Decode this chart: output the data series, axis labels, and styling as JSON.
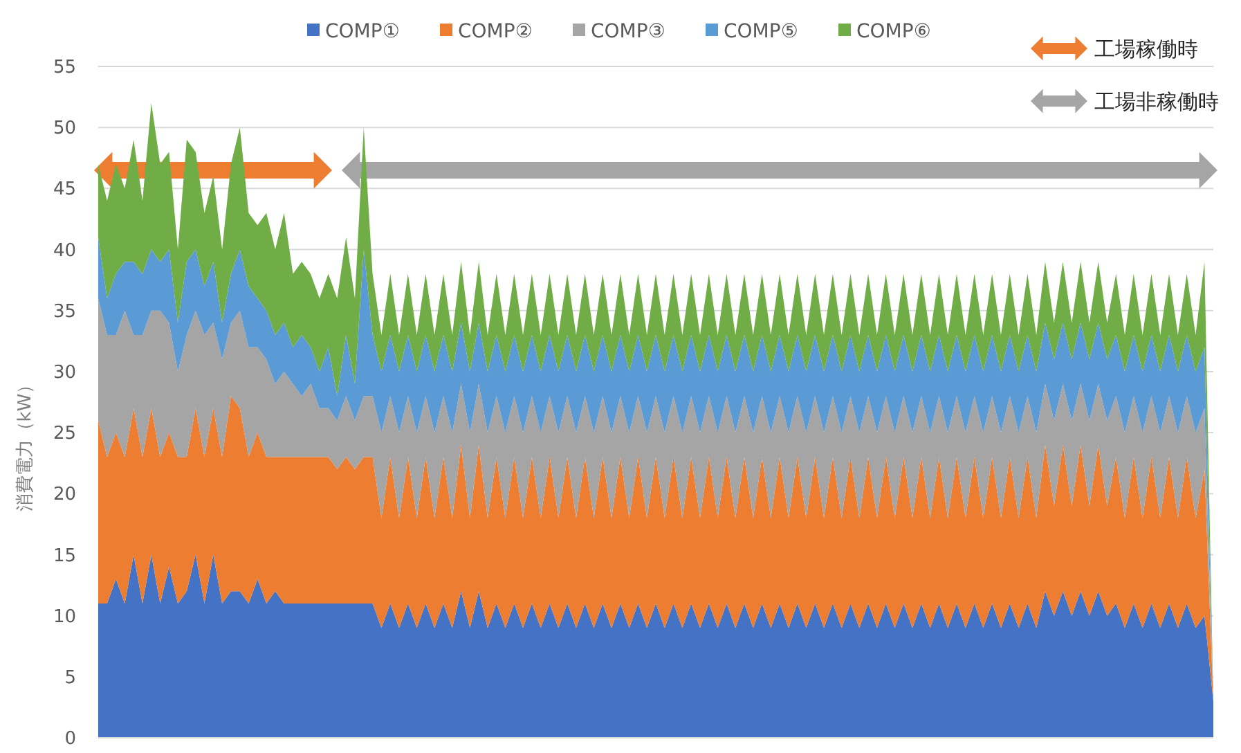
{
  "chart_data": {
    "type": "area",
    "stacked": true,
    "ylabel": "消費電力（kW）",
    "ylim": [
      0,
      55
    ],
    "yticks": [
      0,
      5,
      10,
      15,
      20,
      25,
      30,
      35,
      40,
      45,
      50,
      55
    ],
    "grid": "y",
    "legend": "top",
    "annotations": [
      "工場稼働時",
      "工場非稼働時"
    ],
    "categories": [
      null,
      null,
      null,
      null,
      null,
      null,
      null,
      null,
      null,
      null,
      null,
      null,
      null,
      null,
      null,
      null,
      null,
      null,
      null,
      null,
      null,
      null,
      null,
      null,
      null,
      null,
      null,
      null,
      null,
      null,
      null,
      null,
      null,
      null,
      null,
      null,
      null,
      null,
      null,
      null,
      null,
      null,
      null,
      null,
      null,
      null,
      null,
      null,
      null,
      null,
      null,
      null,
      null,
      null,
      null,
      null,
      null,
      null,
      null,
      null,
      null,
      null,
      null,
      null,
      null,
      null,
      null,
      null,
      null,
      null,
      null,
      null,
      null,
      null,
      null,
      null,
      null,
      null,
      null,
      null,
      null,
      null,
      null,
      null,
      null,
      null,
      null,
      null,
      null,
      null,
      null,
      null,
      null,
      null,
      null,
      null,
      null,
      null,
      null,
      null,
      null,
      null,
      null,
      null,
      null,
      null,
      null,
      null,
      null,
      null,
      null,
      null,
      null,
      null,
      null,
      null,
      null,
      null,
      null,
      null,
      null,
      null,
      null,
      null,
      null,
      null,
      null
    ],
    "series": [
      {
        "name": "COMP①",
        "color": "#4472c4",
        "values": [
          11,
          11,
          13,
          11,
          15,
          11,
          15,
          11,
          14,
          11,
          12,
          15,
          11,
          15,
          11,
          12,
          12,
          11,
          13,
          11,
          12,
          11,
          11,
          11,
          11,
          11,
          11,
          11,
          11,
          11,
          11,
          11,
          9,
          11,
          9,
          11,
          9,
          11,
          9,
          11,
          9,
          12,
          9,
          12,
          9,
          11,
          9,
          11,
          9,
          11,
          9,
          11,
          9,
          11,
          9,
          11,
          9,
          11,
          9,
          11,
          9,
          11,
          9,
          11,
          9,
          11,
          9,
          11,
          9,
          11,
          9,
          11,
          9,
          11,
          9,
          11,
          9,
          11,
          9,
          11,
          9,
          11,
          9,
          11,
          9,
          11,
          9,
          11,
          9,
          11,
          9,
          11,
          9,
          11,
          9,
          11,
          9,
          11,
          9,
          11,
          9,
          11,
          9,
          11,
          9,
          11,
          9,
          12,
          10,
          12,
          10,
          12,
          10,
          12,
          10,
          11,
          9,
          11,
          9,
          11,
          9,
          11,
          9,
          11,
          9,
          10,
          3
        ]
      },
      {
        "name": "COMP②",
        "color": "#ed7d31",
        "values": [
          15,
          12,
          12,
          12,
          12,
          12,
          12,
          12,
          11,
          12,
          11,
          12,
          12,
          12,
          12,
          16,
          15,
          12,
          12,
          12,
          11,
          12,
          12,
          12,
          12,
          12,
          12,
          11,
          12,
          11,
          12,
          12,
          9,
          12,
          9,
          12,
          9,
          12,
          9,
          12,
          9,
          12,
          9,
          12,
          9,
          12,
          9,
          12,
          9,
          12,
          9,
          12,
          9,
          12,
          9,
          12,
          9,
          12,
          9,
          12,
          9,
          12,
          9,
          12,
          9,
          12,
          9,
          12,
          9,
          12,
          9,
          12,
          9,
          12,
          9,
          12,
          9,
          12,
          9,
          12,
          9,
          12,
          9,
          12,
          9,
          12,
          9,
          12,
          9,
          12,
          9,
          12,
          9,
          12,
          9,
          12,
          9,
          12,
          9,
          12,
          9,
          12,
          9,
          12,
          9,
          12,
          9,
          12,
          9,
          12,
          9,
          12,
          9,
          12,
          9,
          12,
          9,
          12,
          9,
          12,
          9,
          12,
          9,
          12,
          9,
          12,
          0
        ]
      },
      {
        "name": "COMP③",
        "color": "#a5a5a5",
        "values": [
          10,
          10,
          8,
          12,
          6,
          10,
          8,
          12,
          9,
          7,
          10,
          8,
          10,
          7,
          8,
          6,
          8,
          9,
          7,
          8,
          6,
          7,
          6,
          5,
          6,
          4,
          4,
          4,
          5,
          4,
          5,
          5,
          7,
          5,
          7,
          5,
          7,
          5,
          7,
          5,
          7,
          5,
          7,
          5,
          7,
          5,
          7,
          5,
          7,
          5,
          7,
          5,
          7,
          5,
          7,
          5,
          7,
          5,
          7,
          5,
          7,
          5,
          7,
          5,
          7,
          5,
          7,
          5,
          7,
          5,
          7,
          5,
          7,
          5,
          7,
          5,
          7,
          5,
          7,
          5,
          7,
          5,
          7,
          5,
          7,
          5,
          7,
          5,
          7,
          5,
          7,
          5,
          7,
          5,
          7,
          5,
          7,
          5,
          7,
          5,
          7,
          5,
          7,
          5,
          7,
          5,
          7,
          5,
          7,
          5,
          7,
          5,
          7,
          5,
          7,
          5,
          7,
          5,
          7,
          5,
          7,
          5,
          7,
          5,
          7,
          5,
          0
        ]
      },
      {
        "name": "COMP⑤",
        "color": "#5b9bd5",
        "values": [
          5,
          3,
          5,
          4,
          6,
          5,
          5,
          4,
          6,
          4,
          6,
          5,
          4,
          5,
          3,
          4,
          5,
          5,
          4,
          4,
          4,
          4,
          3,
          5,
          3,
          3,
          5,
          2,
          5,
          3,
          12,
          5,
          5,
          5,
          5,
          5,
          5,
          5,
          5,
          5,
          5,
          5,
          5,
          5,
          5,
          5,
          5,
          5,
          5,
          5,
          5,
          5,
          5,
          5,
          5,
          5,
          5,
          5,
          5,
          5,
          5,
          5,
          5,
          5,
          5,
          5,
          5,
          5,
          5,
          5,
          5,
          5,
          5,
          5,
          5,
          5,
          5,
          5,
          5,
          5,
          5,
          5,
          5,
          5,
          5,
          5,
          5,
          5,
          5,
          5,
          5,
          5,
          5,
          5,
          5,
          5,
          5,
          5,
          5,
          5,
          5,
          5,
          5,
          5,
          5,
          5,
          5,
          5,
          5,
          5,
          5,
          5,
          5,
          5,
          5,
          5,
          5,
          5,
          5,
          5,
          5,
          5,
          5,
          5,
          5,
          5,
          0
        ]
      },
      {
        "name": "COMP⑥",
        "color": "#70ad47",
        "values": [
          6,
          8,
          9,
          6,
          10,
          6,
          12,
          8,
          8,
          6,
          10,
          8,
          6,
          7,
          6,
          9,
          10,
          6,
          6,
          8,
          7,
          9,
          6,
          6,
          6,
          6,
          6,
          8,
          8,
          7,
          10,
          5,
          3,
          5,
          3,
          5,
          3,
          5,
          3,
          5,
          3,
          5,
          3,
          5,
          3,
          5,
          3,
          5,
          3,
          5,
          3,
          5,
          3,
          5,
          3,
          5,
          3,
          5,
          3,
          5,
          3,
          5,
          3,
          5,
          3,
          5,
          3,
          5,
          3,
          5,
          3,
          5,
          3,
          5,
          3,
          5,
          3,
          5,
          3,
          5,
          3,
          5,
          3,
          5,
          3,
          5,
          3,
          5,
          3,
          5,
          3,
          5,
          3,
          5,
          3,
          5,
          3,
          5,
          3,
          5,
          3,
          5,
          3,
          5,
          3,
          5,
          3,
          5,
          3,
          5,
          3,
          5,
          3,
          5,
          3,
          5,
          3,
          5,
          3,
          5,
          3,
          5,
          3,
          5,
          3,
          7,
          0
        ]
      }
    ]
  }
}
